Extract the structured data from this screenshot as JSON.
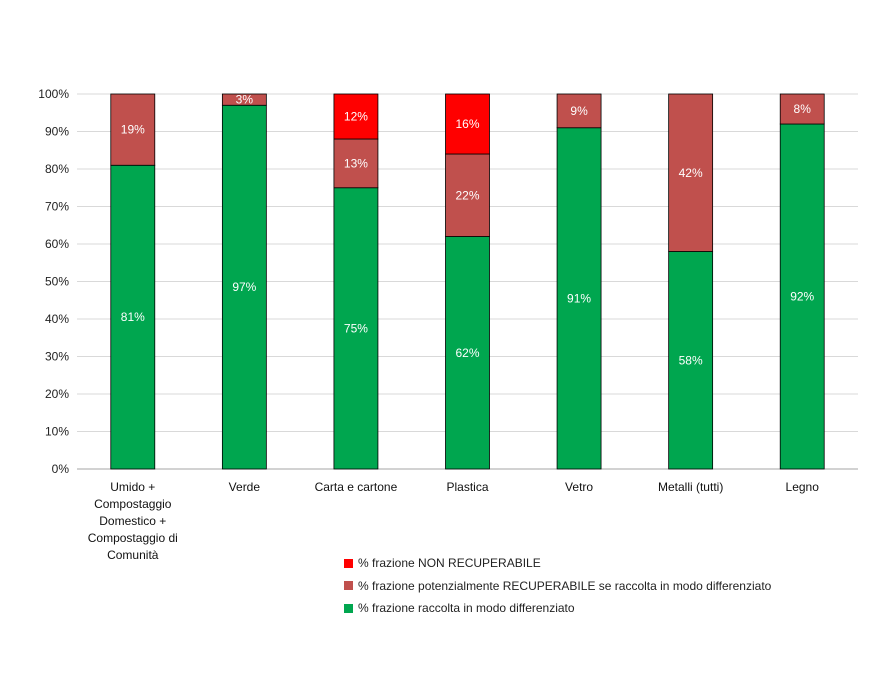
{
  "chart_data": {
    "type": "bar",
    "stacked": true,
    "ylim": [
      0,
      100
    ],
    "ytick_labels": [
      "0%",
      "10%",
      "20%",
      "30%",
      "40%",
      "50%",
      "60%",
      "70%",
      "80%",
      "90%",
      "100%"
    ],
    "categories": [
      [
        "Umido +",
        "Compostaggio",
        "Domestico +",
        "Compostaggio di",
        "Comunità"
      ],
      [
        "Verde"
      ],
      [
        "Carta e cartone"
      ],
      [
        "Plastica"
      ],
      [
        "Vetro"
      ],
      [
        "Metalli (tutti)"
      ],
      [
        "Legno"
      ]
    ],
    "series": [
      {
        "name": "% frazione raccolta in modo differenziato",
        "color": "#00a64f",
        "values": [
          81,
          97,
          75,
          62,
          91,
          58,
          92
        ],
        "labels": [
          "81%",
          "97%",
          "75%",
          "62%",
          "91%",
          "58%",
          "92%"
        ]
      },
      {
        "name": "% frazione potenzialmente RECUPERABILE se raccolta in modo differenziato",
        "color": "#c0504d",
        "values": [
          19,
          3,
          13,
          22,
          9,
          42,
          8
        ],
        "labels": [
          "19%",
          "3%",
          "13%",
          "22%",
          "9%",
          "42%",
          "8%"
        ]
      },
      {
        "name": "% frazione NON RECUPERABILE",
        "color": "#ff0000",
        "values": [
          0,
          0,
          12,
          16,
          0,
          0,
          0
        ],
        "labels": [
          "",
          "",
          "12%",
          "16%",
          "",
          "",
          ""
        ]
      }
    ],
    "legend_order": [
      2,
      1,
      0
    ],
    "legend_position": "bottom-center",
    "grid": true
  }
}
